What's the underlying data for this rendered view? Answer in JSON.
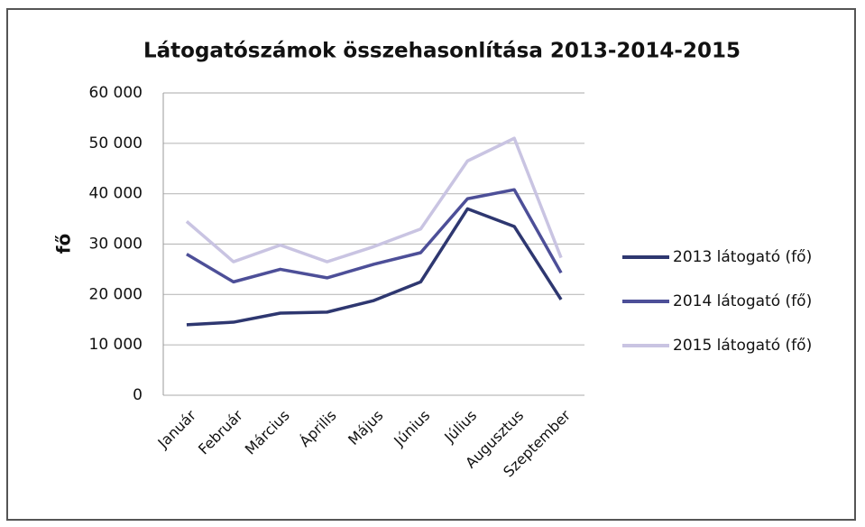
{
  "chart_data": {
    "type": "line",
    "title": "Látogatószámok összehasonlítása 2013-2014-2015",
    "y_label": "fő",
    "categories": [
      "Január",
      "Február",
      "Március",
      "Április",
      "Május",
      "Június",
      "Július",
      "Augusztus",
      "Szeptember"
    ],
    "series": [
      {
        "name": "2013 látogató (fő)",
        "color": "#2e3770",
        "values": [
          14000,
          14500,
          16300,
          16500,
          18800,
          22500,
          37000,
          33500,
          19000
        ]
      },
      {
        "name": "2014 látogató (fő)",
        "color": "#4d4f98",
        "values": [
          28000,
          22500,
          25000,
          23300,
          26000,
          28300,
          39000,
          40800,
          24300
        ]
      },
      {
        "name": "2015 látogató (fő)",
        "color": "#c9c4e2",
        "values": [
          34500,
          26500,
          29800,
          26500,
          29500,
          33000,
          46500,
          51000,
          27300
        ]
      }
    ],
    "ylim": [
      0,
      60000
    ],
    "yticks": [
      0,
      {
        "value": 10000,
        "label": "10 000"
      },
      {
        "value": 20000,
        "label": "20 000"
      },
      {
        "value": 30000,
        "label": "30 000"
      },
      {
        "value": 40000,
        "label": "40 000"
      },
      {
        "value": 50000,
        "label": "50 000"
      },
      {
        "value": 60000,
        "label": "60 000"
      }
    ],
    "grid": true,
    "legend": "right"
  }
}
